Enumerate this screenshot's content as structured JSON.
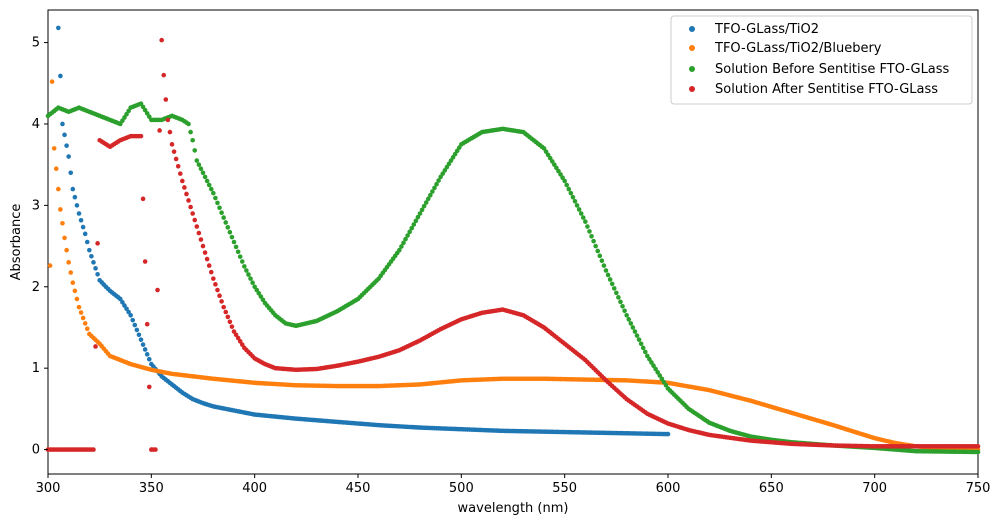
{
  "chart_data": {
    "type": "scatter",
    "xlabel": "wavelength (nm)",
    "ylabel": "Absorbance",
    "xlim": [
      300,
      750
    ],
    "ylim": [
      -0.3,
      5.4
    ],
    "xticks": [
      "300",
      "350",
      "400",
      "450",
      "500",
      "550",
      "600",
      "650",
      "700",
      "750"
    ],
    "yticks": [
      "0",
      "1",
      "2",
      "3",
      "4",
      "5"
    ],
    "grid": false,
    "legend_position": "top-right",
    "series": [
      {
        "name": "TFO-GLass/TiO2",
        "color": "#1f77b4",
        "x": [
          305,
          307,
          310,
          312,
          315,
          318,
          320,
          322,
          325,
          328,
          330,
          335,
          340,
          345,
          350,
          355,
          360,
          365,
          370,
          375,
          380,
          390,
          400,
          420,
          440,
          460,
          480,
          500,
          520,
          540,
          560,
          580,
          600
        ],
        "y": [
          5.18,
          4.0,
          3.6,
          3.2,
          2.9,
          2.65,
          2.45,
          2.3,
          2.08,
          2.0,
          1.95,
          1.85,
          1.65,
          1.35,
          1.05,
          0.9,
          0.8,
          0.7,
          0.62,
          0.57,
          0.53,
          0.48,
          0.43,
          0.38,
          0.34,
          0.3,
          0.27,
          0.25,
          0.23,
          0.22,
          0.21,
          0.2,
          0.19
        ]
      },
      {
        "name": "TFO-GLass/TiO2/Bluebery",
        "color": "#ff7f0e",
        "x": [
          300,
          302,
          303,
          304,
          305,
          306,
          307,
          308,
          310,
          312,
          315,
          318,
          320,
          325,
          330,
          340,
          350,
          360,
          370,
          380,
          400,
          420,
          440,
          460,
          480,
          500,
          520,
          540,
          560,
          580,
          600,
          620,
          640,
          660,
          680,
          700,
          710,
          720,
          730,
          750
        ],
        "y": [
          0.0,
          4.52,
          3.7,
          3.45,
          3.2,
          2.95,
          2.78,
          2.6,
          2.3,
          2.05,
          1.75,
          1.55,
          1.42,
          1.3,
          1.15,
          1.05,
          0.98,
          0.93,
          0.9,
          0.87,
          0.82,
          0.79,
          0.78,
          0.78,
          0.8,
          0.85,
          0.87,
          0.87,
          0.86,
          0.85,
          0.82,
          0.73,
          0.6,
          0.45,
          0.3,
          0.14,
          0.08,
          0.04,
          0.02,
          0.0
        ]
      },
      {
        "name": "Solution Before Sentitise FTO-GLass",
        "color": "#2ca02c",
        "x": [
          300,
          305,
          310,
          315,
          320,
          325,
          330,
          335,
          340,
          345,
          350,
          355,
          360,
          365,
          368,
          370,
          372,
          375,
          380,
          385,
          390,
          395,
          400,
          405,
          410,
          415,
          420,
          430,
          440,
          450,
          460,
          470,
          480,
          490,
          500,
          510,
          520,
          530,
          540,
          550,
          560,
          570,
          580,
          590,
          600,
          610,
          620,
          630,
          640,
          650,
          660,
          680,
          700,
          720,
          750
        ],
        "y": [
          4.1,
          4.2,
          4.15,
          4.2,
          4.15,
          4.1,
          4.05,
          4.0,
          4.2,
          4.25,
          4.05,
          4.05,
          4.1,
          4.05,
          4.0,
          3.8,
          3.55,
          3.4,
          3.15,
          2.85,
          2.55,
          2.25,
          2.0,
          1.8,
          1.65,
          1.55,
          1.52,
          1.58,
          1.7,
          1.85,
          2.1,
          2.45,
          2.9,
          3.35,
          3.75,
          3.9,
          3.94,
          3.9,
          3.7,
          3.3,
          2.8,
          2.2,
          1.65,
          1.15,
          0.75,
          0.5,
          0.33,
          0.23,
          0.16,
          0.12,
          0.09,
          0.05,
          0.02,
          -0.02,
          -0.03
        ]
      },
      {
        "name": "Solution After Sentitise FTO-GLass",
        "color": "#d62728",
        "x": [
          300,
          305,
          310,
          315,
          320,
          322,
          325,
          330,
          335,
          340,
          345,
          350,
          352,
          354,
          355,
          356,
          357,
          358,
          360,
          365,
          370,
          375,
          380,
          385,
          390,
          395,
          400,
          405,
          410,
          420,
          430,
          440,
          450,
          460,
          470,
          480,
          490,
          500,
          510,
          520,
          530,
          540,
          550,
          560,
          570,
          580,
          590,
          600,
          610,
          620,
          640,
          660,
          680,
          700,
          720,
          750
        ],
        "y": [
          0.0,
          0.0,
          0.0,
          0.0,
          0.0,
          0.0,
          3.8,
          3.72,
          3.8,
          3.85,
          3.85,
          0.0,
          0.0,
          3.92,
          5.03,
          4.6,
          4.3,
          4.05,
          3.75,
          3.3,
          2.9,
          2.5,
          2.1,
          1.75,
          1.45,
          1.25,
          1.12,
          1.05,
          1.0,
          0.98,
          0.99,
          1.03,
          1.08,
          1.14,
          1.22,
          1.34,
          1.48,
          1.6,
          1.68,
          1.72,
          1.65,
          1.5,
          1.3,
          1.1,
          0.85,
          0.62,
          0.44,
          0.32,
          0.24,
          0.18,
          0.11,
          0.07,
          0.05,
          0.04,
          0.04,
          0.04
        ]
      }
    ]
  }
}
